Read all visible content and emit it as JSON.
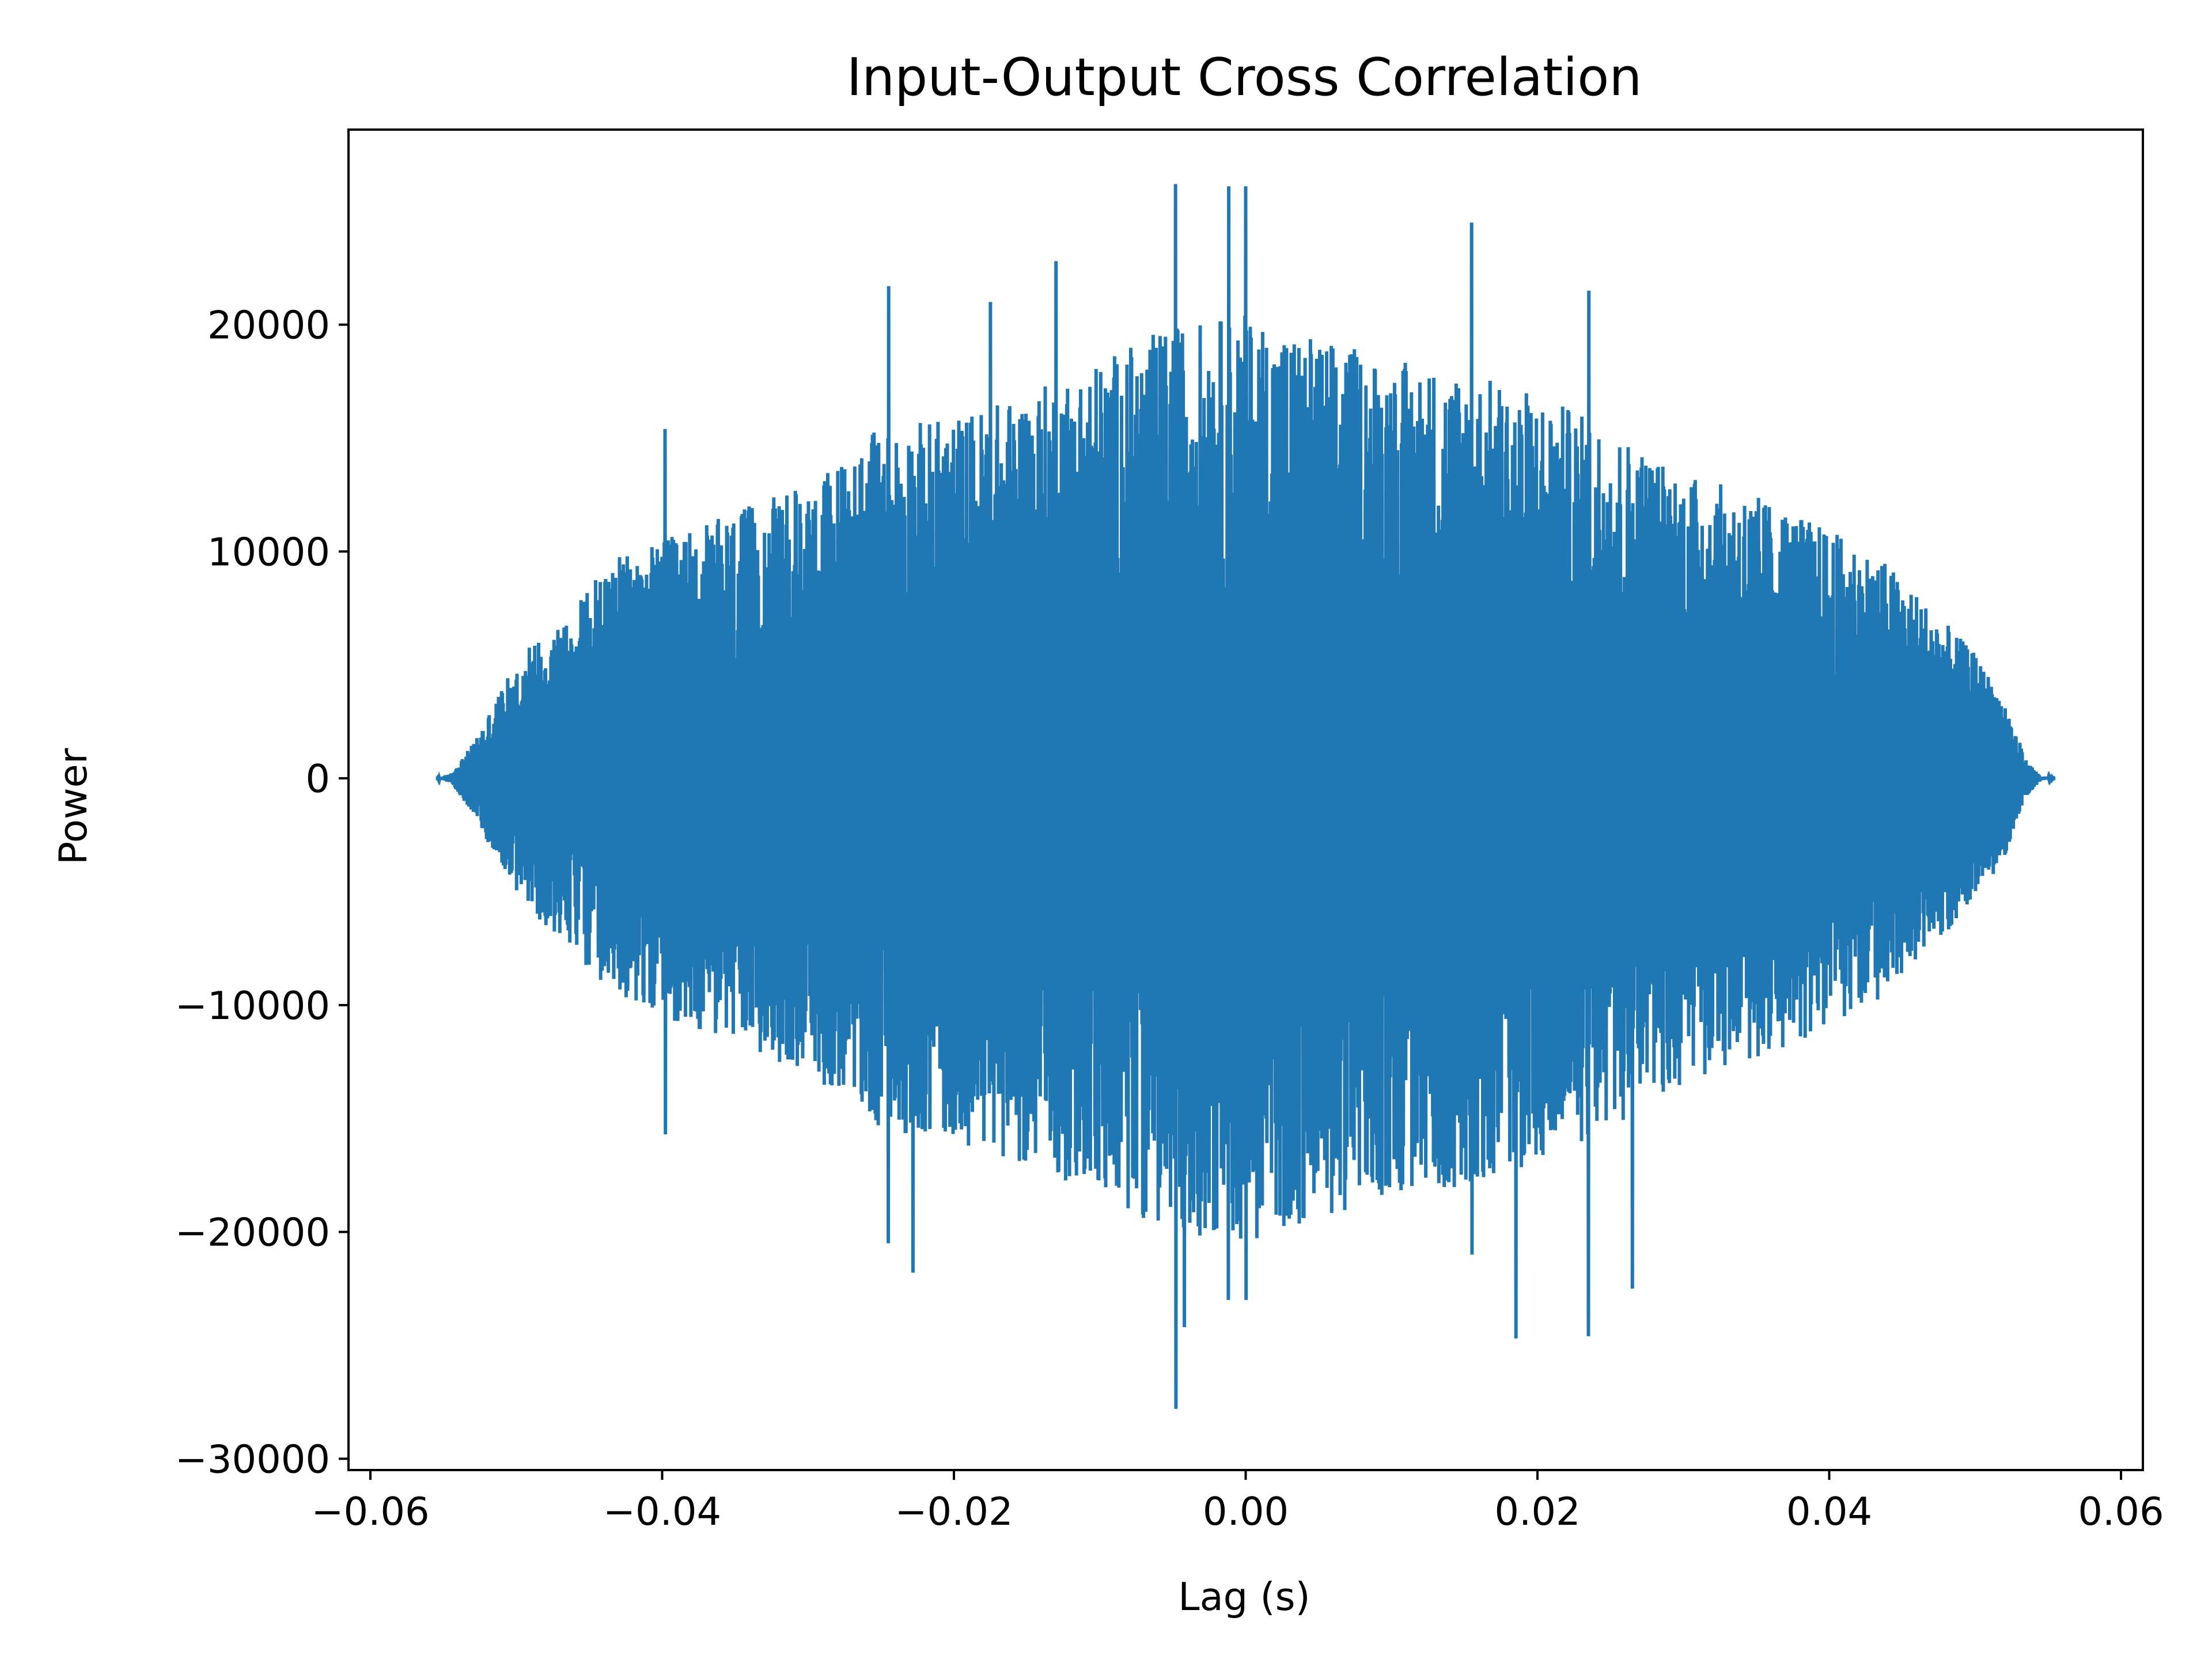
{
  "chart_data": {
    "type": "line",
    "title": "Input-Output Cross Correlation",
    "xlabel": "Lag (s)",
    "ylabel": "Power",
    "xlim": [
      -0.0615,
      0.0615
    ],
    "ylim": [
      -30500,
      28600
    ],
    "x_ticks": [
      -0.06,
      -0.04,
      -0.02,
      0.0,
      0.02,
      0.04,
      0.06
    ],
    "x_tick_labels": [
      "−0.06",
      "−0.04",
      "−0.02",
      "0.00",
      "0.02",
      "0.04",
      "0.06"
    ],
    "y_ticks": [
      -30000,
      -20000,
      -10000,
      0,
      10000,
      20000
    ],
    "y_tick_labels": [
      "−30000",
      "−20000",
      "−10000",
      "0",
      "10000",
      "20000"
    ],
    "grid": false,
    "legend": "none",
    "series_color": "#1f77b4",
    "series": [
      {
        "x_range": [
          -0.0555,
          0.0555
        ],
        "envelope": [
          [
            -0.0555,
            0
          ],
          [
            -0.0545,
            200
          ],
          [
            -0.053,
            1500
          ],
          [
            -0.051,
            4000
          ],
          [
            -0.049,
            6000
          ],
          [
            -0.046,
            7500
          ],
          [
            -0.044,
            9500
          ],
          [
            -0.04,
            10500
          ],
          [
            -0.036,
            11500
          ],
          [
            -0.03,
            13000
          ],
          [
            -0.025,
            15500
          ],
          [
            -0.02,
            16000
          ],
          [
            -0.015,
            17000
          ],
          [
            -0.01,
            18500
          ],
          [
            -0.005,
            20000
          ],
          [
            0.0,
            20500
          ],
          [
            0.005,
            19500
          ],
          [
            0.01,
            18500
          ],
          [
            0.015,
            18000
          ],
          [
            0.02,
            17000
          ],
          [
            0.025,
            15500
          ],
          [
            0.03,
            13500
          ],
          [
            0.035,
            12500
          ],
          [
            0.04,
            11000
          ],
          [
            0.044,
            9500
          ],
          [
            0.047,
            7500
          ],
          [
            0.05,
            5500
          ],
          [
            0.052,
            3500
          ],
          [
            0.0535,
            800
          ],
          [
            0.0545,
            100
          ],
          [
            0.0555,
            0
          ]
        ],
        "peaks": [
          [
            -0.0398,
            15400
          ],
          [
            -0.0398,
            -15700
          ],
          [
            -0.0245,
            21700
          ],
          [
            -0.0245,
            -20500
          ],
          [
            -0.0228,
            -21800
          ],
          [
            -0.0175,
            21000
          ],
          [
            -0.013,
            22800
          ],
          [
            -0.0048,
            26200
          ],
          [
            -0.0048,
            -27800
          ],
          [
            -0.0042,
            -24200
          ],
          [
            -0.0012,
            26100
          ],
          [
            -0.0012,
            -23000
          ],
          [
            0.0,
            26100
          ],
          [
            0.0,
            -23000
          ],
          [
            0.0155,
            24500
          ],
          [
            0.0155,
            -21000
          ],
          [
            0.0185,
            -24700
          ],
          [
            0.0235,
            21500
          ],
          [
            0.0235,
            -24600
          ],
          [
            0.0265,
            -22500
          ]
        ]
      }
    ]
  }
}
